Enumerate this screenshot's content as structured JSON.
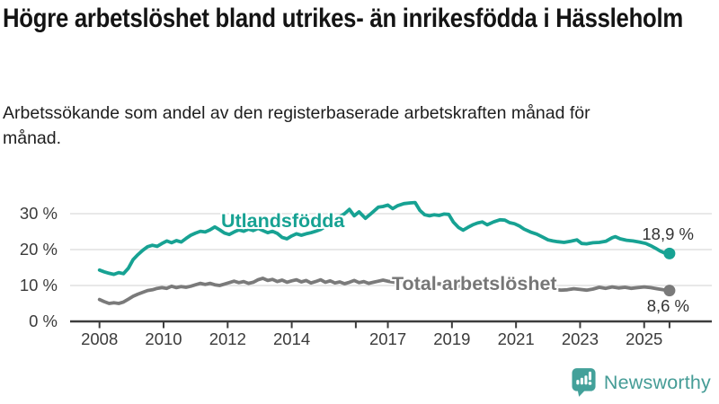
{
  "header": {
    "title": "Högre arbetslöshet bland utrikes- än inrikesfödda i Hässleholm",
    "subtitle": "Arbetssökande som andel av den registerbaserade arbetskraften månad för månad."
  },
  "footer": {
    "brand": "Newsworthy",
    "logo_icon": "speech-bubble-bar-chart-icon",
    "logo_color": "#43a19a"
  },
  "colors": {
    "accent_teal": "#17a293",
    "series_gray": "#7a7a7a",
    "grid": "#d9d9d9",
    "axis": "#3d3d3d",
    "tick_text": "#3b3b3b"
  },
  "chart_data": {
    "type": "line",
    "title": "Högre arbetslöshet bland utrikes- än inrikesfödda i Hässleholm",
    "subtitle": "Arbetssökande som andel av den registerbaserade arbetskraften månad för månad.",
    "xlabel": "",
    "ylabel": "",
    "grid": true,
    "legend_position": "inline-labels",
    "x_axis": {
      "range": [
        2007.9,
        2026.1
      ],
      "ticks": [
        {
          "year": 2008,
          "label": "2008"
        },
        {
          "year": 2010,
          "label": "2010"
        },
        {
          "year": 2012,
          "label": "2012"
        },
        {
          "year": 2014,
          "label": "2014"
        },
        {
          "year": 2016,
          "label": ""
        },
        {
          "year": 2017,
          "label": "2017"
        },
        {
          "year": 2019,
          "label": "2019"
        },
        {
          "year": 2021,
          "label": "2021"
        },
        {
          "year": 2023,
          "label": "2023"
        },
        {
          "year": 2025,
          "label": "2025"
        },
        {
          "year": 2025.79,
          "label": ""
        }
      ]
    },
    "y_axis": {
      "range": [
        0,
        36.5
      ],
      "unit": "%",
      "ticks": [
        {
          "value": 30,
          "label": "30 %"
        },
        {
          "value": 20,
          "label": "20 %"
        },
        {
          "value": 10,
          "label": "10 %"
        },
        {
          "value": 0,
          "label": "0 %"
        }
      ]
    },
    "series": [
      {
        "name": "Utlandsfödda",
        "color": "#17a293",
        "end_label": "18,9 %",
        "end_value": 18.9,
        "points": [
          [
            2008.0,
            14.3
          ],
          [
            2008.15,
            13.8
          ],
          [
            2008.3,
            13.4
          ],
          [
            2008.45,
            13.1
          ],
          [
            2008.6,
            13.6
          ],
          [
            2008.75,
            13.3
          ],
          [
            2008.9,
            14.8
          ],
          [
            2009.05,
            17.2
          ],
          [
            2009.2,
            18.6
          ],
          [
            2009.35,
            19.8
          ],
          [
            2009.5,
            20.8
          ],
          [
            2009.65,
            21.2
          ],
          [
            2009.8,
            20.9
          ],
          [
            2009.95,
            21.7
          ],
          [
            2010.1,
            22.4
          ],
          [
            2010.25,
            21.9
          ],
          [
            2010.4,
            22.5
          ],
          [
            2010.55,
            22.1
          ],
          [
            2010.7,
            23.1
          ],
          [
            2010.85,
            24.0
          ],
          [
            2011.0,
            24.6
          ],
          [
            2011.15,
            25.1
          ],
          [
            2011.3,
            24.9
          ],
          [
            2011.45,
            25.5
          ],
          [
            2011.6,
            26.3
          ],
          [
            2011.75,
            25.5
          ],
          [
            2011.9,
            24.6
          ],
          [
            2012.05,
            24.2
          ],
          [
            2012.2,
            24.9
          ],
          [
            2012.35,
            25.5
          ],
          [
            2012.5,
            25.1
          ],
          [
            2012.65,
            25.7
          ],
          [
            2012.8,
            25.3
          ],
          [
            2012.95,
            25.9
          ],
          [
            2013.1,
            25.3
          ],
          [
            2013.25,
            24.7
          ],
          [
            2013.4,
            25.1
          ],
          [
            2013.55,
            24.5
          ],
          [
            2013.7,
            23.4
          ],
          [
            2013.85,
            23.0
          ],
          [
            2014.0,
            23.8
          ],
          [
            2014.15,
            24.4
          ],
          [
            2014.3,
            24.0
          ],
          [
            2014.45,
            24.4
          ],
          [
            2014.6,
            24.7
          ],
          [
            2014.75,
            25.1
          ],
          [
            2014.9,
            25.6
          ],
          [
            2015.05,
            26.4
          ],
          [
            2015.2,
            27.6
          ],
          [
            2015.35,
            28.5
          ],
          [
            2015.5,
            29.2
          ],
          [
            2015.65,
            30.0
          ],
          [
            2015.8,
            31.2
          ],
          [
            2015.95,
            29.4
          ],
          [
            2016.1,
            30.5
          ],
          [
            2016.3,
            28.7
          ],
          [
            2016.5,
            30.2
          ],
          [
            2016.7,
            31.8
          ],
          [
            2016.85,
            32.0
          ],
          [
            2017.0,
            32.4
          ],
          [
            2017.15,
            31.4
          ],
          [
            2017.3,
            32.2
          ],
          [
            2017.5,
            32.8
          ],
          [
            2017.7,
            33.0
          ],
          [
            2017.85,
            33.1
          ],
          [
            2018.0,
            30.9
          ],
          [
            2018.15,
            29.7
          ],
          [
            2018.3,
            29.4
          ],
          [
            2018.45,
            29.7
          ],
          [
            2018.6,
            29.5
          ],
          [
            2018.75,
            29.9
          ],
          [
            2018.9,
            29.8
          ],
          [
            2019.05,
            27.6
          ],
          [
            2019.2,
            26.2
          ],
          [
            2019.35,
            25.4
          ],
          [
            2019.5,
            26.2
          ],
          [
            2019.65,
            26.9
          ],
          [
            2019.8,
            27.4
          ],
          [
            2019.95,
            27.7
          ],
          [
            2020.1,
            26.9
          ],
          [
            2020.3,
            27.7
          ],
          [
            2020.5,
            28.3
          ],
          [
            2020.65,
            28.2
          ],
          [
            2020.8,
            27.5
          ],
          [
            2020.95,
            27.2
          ],
          [
            2021.1,
            26.6
          ],
          [
            2021.25,
            25.7
          ],
          [
            2021.45,
            24.9
          ],
          [
            2021.65,
            24.3
          ],
          [
            2021.85,
            23.4
          ],
          [
            2022.0,
            22.7
          ],
          [
            2022.15,
            22.4
          ],
          [
            2022.3,
            22.2
          ],
          [
            2022.5,
            22.0
          ],
          [
            2022.7,
            22.3
          ],
          [
            2022.9,
            22.7
          ],
          [
            2023.05,
            21.7
          ],
          [
            2023.2,
            21.6
          ],
          [
            2023.4,
            21.9
          ],
          [
            2023.6,
            22.0
          ],
          [
            2023.8,
            22.3
          ],
          [
            2024.0,
            23.3
          ],
          [
            2024.1,
            23.6
          ],
          [
            2024.25,
            23.0
          ],
          [
            2024.45,
            22.6
          ],
          [
            2024.65,
            22.4
          ],
          [
            2024.85,
            22.1
          ],
          [
            2025.05,
            21.7
          ],
          [
            2025.2,
            21.1
          ],
          [
            2025.35,
            20.4
          ],
          [
            2025.5,
            19.6
          ],
          [
            2025.65,
            19.0
          ],
          [
            2025.79,
            18.9
          ]
        ]
      },
      {
        "name": "Total arbetslöshet",
        "color": "#7a7a7a",
        "end_label": "8,6 %",
        "end_value": 8.6,
        "points": [
          [
            2008.0,
            6.1
          ],
          [
            2008.15,
            5.5
          ],
          [
            2008.3,
            5.0
          ],
          [
            2008.45,
            5.2
          ],
          [
            2008.6,
            5.0
          ],
          [
            2008.75,
            5.4
          ],
          [
            2008.9,
            6.2
          ],
          [
            2009.05,
            7.0
          ],
          [
            2009.2,
            7.6
          ],
          [
            2009.35,
            8.1
          ],
          [
            2009.5,
            8.6
          ],
          [
            2009.65,
            8.8
          ],
          [
            2009.8,
            9.2
          ],
          [
            2009.95,
            9.4
          ],
          [
            2010.1,
            9.2
          ],
          [
            2010.25,
            9.8
          ],
          [
            2010.4,
            9.4
          ],
          [
            2010.55,
            9.7
          ],
          [
            2010.7,
            9.5
          ],
          [
            2010.85,
            9.8
          ],
          [
            2011.0,
            10.2
          ],
          [
            2011.15,
            10.6
          ],
          [
            2011.3,
            10.3
          ],
          [
            2011.45,
            10.6
          ],
          [
            2011.6,
            10.2
          ],
          [
            2011.75,
            10.0
          ],
          [
            2011.9,
            10.4
          ],
          [
            2012.05,
            10.8
          ],
          [
            2012.2,
            11.2
          ],
          [
            2012.35,
            10.8
          ],
          [
            2012.5,
            11.1
          ],
          [
            2012.65,
            10.6
          ],
          [
            2012.8,
            10.9
          ],
          [
            2012.95,
            11.6
          ],
          [
            2013.1,
            12.0
          ],
          [
            2013.25,
            11.4
          ],
          [
            2013.4,
            11.7
          ],
          [
            2013.55,
            11.1
          ],
          [
            2013.7,
            11.5
          ],
          [
            2013.85,
            10.9
          ],
          [
            2014.0,
            11.3
          ],
          [
            2014.15,
            11.6
          ],
          [
            2014.3,
            11.0
          ],
          [
            2014.45,
            11.4
          ],
          [
            2014.6,
            10.7
          ],
          [
            2014.75,
            11.1
          ],
          [
            2014.9,
            11.6
          ],
          [
            2015.05,
            10.9
          ],
          [
            2015.2,
            11.3
          ],
          [
            2015.35,
            10.7
          ],
          [
            2015.5,
            11.0
          ],
          [
            2015.65,
            10.5
          ],
          [
            2015.8,
            10.9
          ],
          [
            2015.95,
            11.4
          ],
          [
            2016.1,
            10.8
          ],
          [
            2016.25,
            11.1
          ],
          [
            2016.4,
            10.6
          ],
          [
            2016.55,
            10.9
          ],
          [
            2016.7,
            11.2
          ],
          [
            2016.85,
            11.5
          ],
          [
            2017.0,
            11.2
          ],
          [
            2017.2,
            10.9
          ],
          [
            2017.4,
            11.1
          ],
          [
            2017.6,
            10.6
          ],
          [
            2017.8,
            10.9
          ],
          [
            2018.0,
            10.4
          ],
          [
            2018.2,
            10.7
          ],
          [
            2018.4,
            10.2
          ],
          [
            2018.6,
            10.5
          ],
          [
            2018.8,
            10.0
          ],
          [
            2019.0,
            10.2
          ],
          [
            2019.2,
            9.8
          ],
          [
            2019.4,
            10.0
          ],
          [
            2019.6,
            10.2
          ],
          [
            2019.8,
            10.0
          ],
          [
            2020.0,
            10.4
          ],
          [
            2020.2,
            11.0
          ],
          [
            2020.4,
            11.4
          ],
          [
            2020.6,
            11.1
          ],
          [
            2020.8,
            10.8
          ],
          [
            2021.0,
            10.5
          ],
          [
            2021.2,
            10.1
          ],
          [
            2021.4,
            9.8
          ],
          [
            2021.6,
            9.6
          ],
          [
            2021.8,
            9.3
          ],
          [
            2022.0,
            9.1
          ],
          [
            2022.2,
            8.9
          ],
          [
            2022.4,
            8.7
          ],
          [
            2022.6,
            8.8
          ],
          [
            2022.8,
            9.1
          ],
          [
            2023.0,
            8.9
          ],
          [
            2023.2,
            8.7
          ],
          [
            2023.4,
            9.0
          ],
          [
            2023.6,
            9.5
          ],
          [
            2023.8,
            9.2
          ],
          [
            2024.0,
            9.6
          ],
          [
            2024.2,
            9.3
          ],
          [
            2024.4,
            9.5
          ],
          [
            2024.6,
            9.2
          ],
          [
            2024.8,
            9.4
          ],
          [
            2025.0,
            9.6
          ],
          [
            2025.2,
            9.4
          ],
          [
            2025.4,
            9.1
          ],
          [
            2025.6,
            8.8
          ],
          [
            2025.79,
            8.6
          ]
        ]
      }
    ]
  }
}
